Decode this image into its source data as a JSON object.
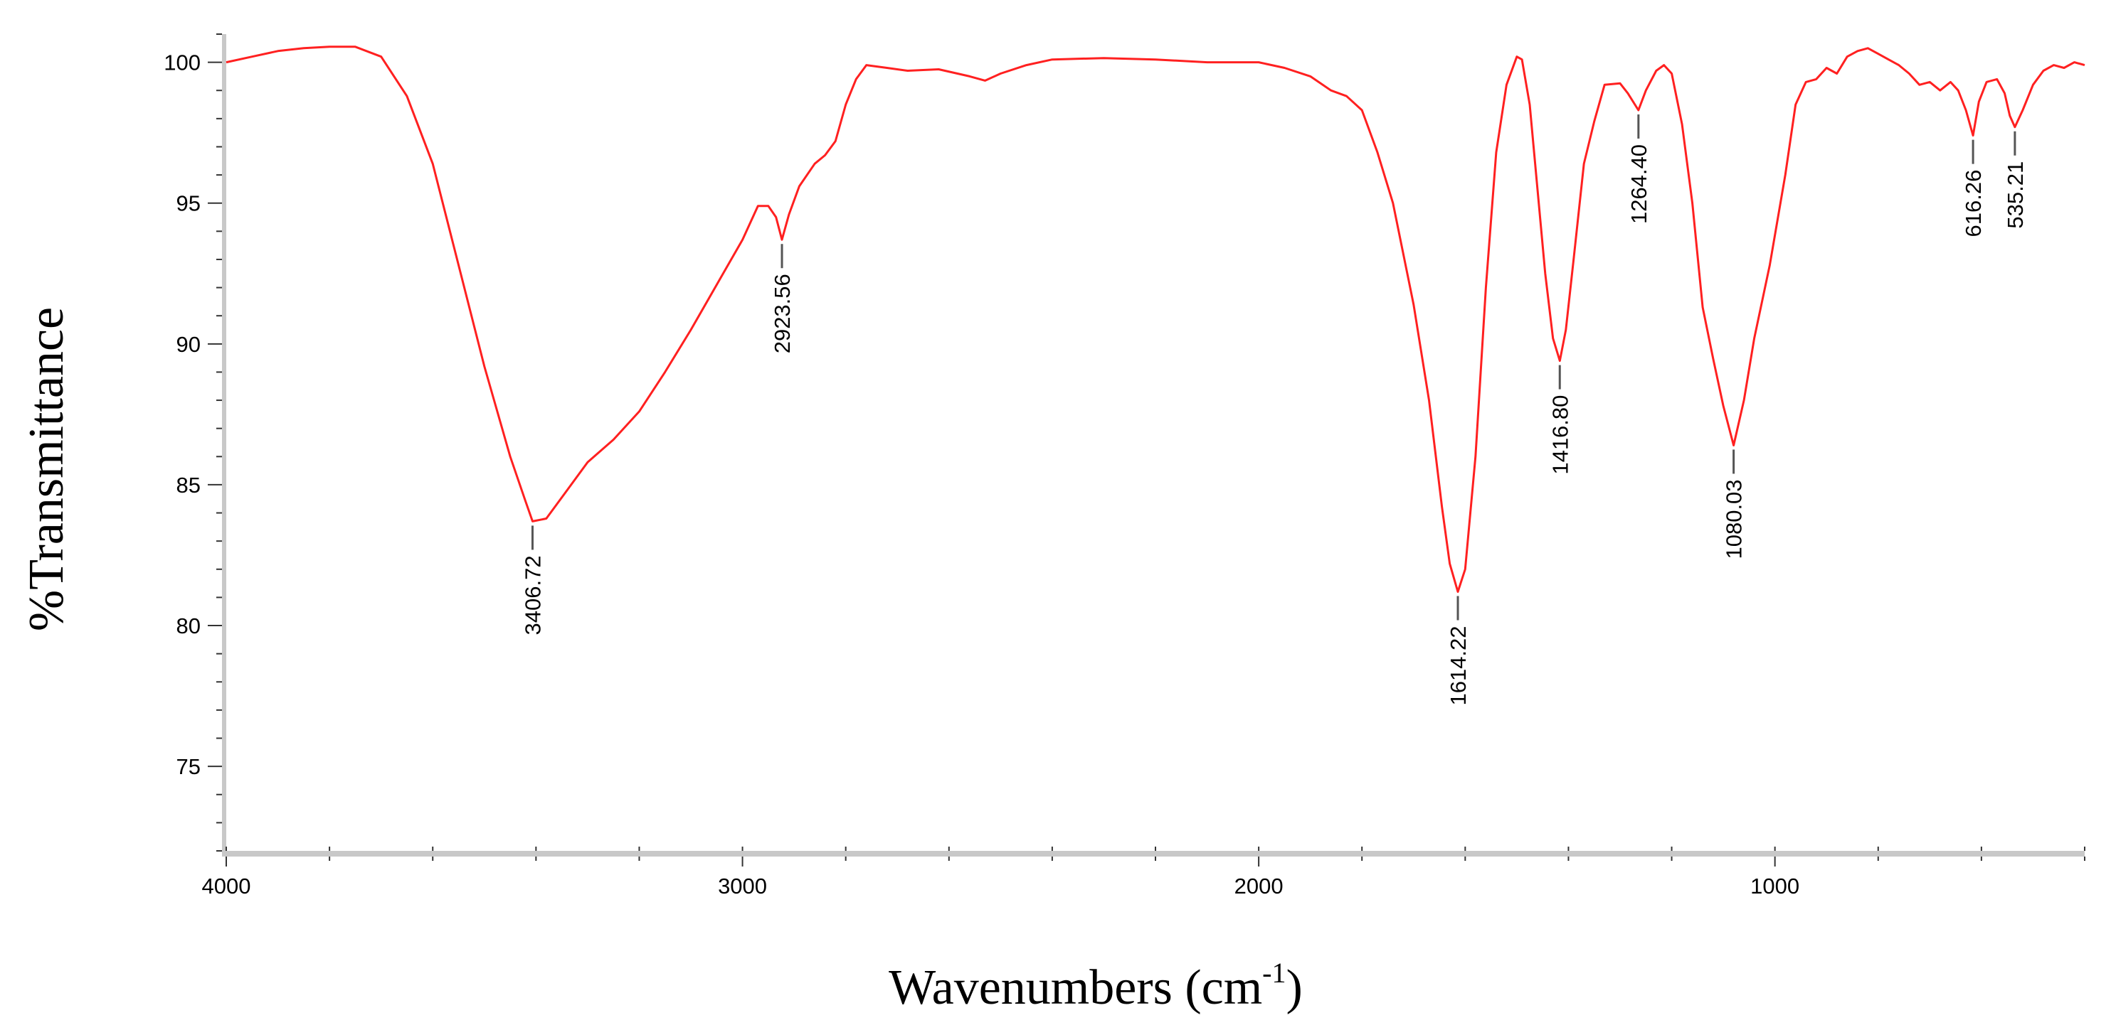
{
  "chart_data": {
    "type": "line",
    "title": "",
    "xlabel": "Wavenumbers (cm",
    "xlabel_sup": "-1",
    "xlabel_close": ")",
    "ylabel": "%Transmittance",
    "xlim": [
      4000,
      400
    ],
    "ylim": [
      72,
      101
    ],
    "x_ticks": [
      4000,
      3000,
      2000,
      1000
    ],
    "y_ticks": [
      100,
      95,
      90,
      85,
      80,
      75
    ],
    "grid": false,
    "line_color": "#ff2020",
    "peak_line_color": "#555555",
    "peak_labels": [
      {
        "label": "3406.72",
        "x": 3406.72,
        "y": 83.7
      },
      {
        "label": "2923.56",
        "x": 2923.56,
        "y": 93.7
      },
      {
        "label": "1614.22",
        "x": 1614.22,
        "y": 81.2
      },
      {
        "label": "1416.80",
        "x": 1416.8,
        "y": 89.4
      },
      {
        "label": "1264.40",
        "x": 1264.4,
        "y": 98.3
      },
      {
        "label": "1080.03",
        "x": 1080.03,
        "y": 86.4
      },
      {
        "label": "616.26",
        "x": 616.26,
        "y": 97.4
      },
      {
        "label": "535.21",
        "x": 535.21,
        "y": 97.7
      }
    ],
    "series": [
      {
        "points": [
          [
            4000,
            100.0
          ],
          [
            3950,
            100.2
          ],
          [
            3900,
            100.4
          ],
          [
            3850,
            100.5
          ],
          [
            3800,
            100.55
          ],
          [
            3750,
            100.55
          ],
          [
            3700,
            100.2
          ],
          [
            3650,
            98.8
          ],
          [
            3600,
            96.4
          ],
          [
            3550,
            92.8
          ],
          [
            3500,
            89.2
          ],
          [
            3450,
            86.0
          ],
          [
            3420,
            84.4
          ],
          [
            3406.72,
            83.7
          ],
          [
            3380,
            83.8
          ],
          [
            3340,
            84.8
          ],
          [
            3300,
            85.8
          ],
          [
            3250,
            86.6
          ],
          [
            3200,
            87.6
          ],
          [
            3150,
            89.0
          ],
          [
            3100,
            90.5
          ],
          [
            3050,
            92.1
          ],
          [
            3000,
            93.7
          ],
          [
            2970,
            94.9
          ],
          [
            2950,
            94.9
          ],
          [
            2935,
            94.5
          ],
          [
            2923.56,
            93.7
          ],
          [
            2910,
            94.6
          ],
          [
            2890,
            95.6
          ],
          [
            2860,
            96.4
          ],
          [
            2840,
            96.7
          ],
          [
            2820,
            97.2
          ],
          [
            2800,
            98.5
          ],
          [
            2780,
            99.4
          ],
          [
            2760,
            99.9
          ],
          [
            2720,
            99.8
          ],
          [
            2680,
            99.7
          ],
          [
            2620,
            99.75
          ],
          [
            2560,
            99.5
          ],
          [
            2530,
            99.35
          ],
          [
            2500,
            99.6
          ],
          [
            2450,
            99.9
          ],
          [
            2400,
            100.1
          ],
          [
            2300,
            100.15
          ],
          [
            2200,
            100.1
          ],
          [
            2100,
            100.0
          ],
          [
            2000,
            100.0
          ],
          [
            1950,
            99.8
          ],
          [
            1900,
            99.5
          ],
          [
            1860,
            99.0
          ],
          [
            1830,
            98.8
          ],
          [
            1800,
            98.3
          ],
          [
            1770,
            96.8
          ],
          [
            1740,
            95.0
          ],
          [
            1700,
            91.4
          ],
          [
            1670,
            88.0
          ],
          [
            1645,
            84.2
          ],
          [
            1630,
            82.2
          ],
          [
            1614.22,
            81.2
          ],
          [
            1600,
            82.0
          ],
          [
            1580,
            86.0
          ],
          [
            1560,
            92.0
          ],
          [
            1540,
            96.8
          ],
          [
            1520,
            99.2
          ],
          [
            1500,
            100.2
          ],
          [
            1490,
            100.1
          ],
          [
            1475,
            98.5
          ],
          [
            1460,
            95.5
          ],
          [
            1445,
            92.5
          ],
          [
            1430,
            90.2
          ],
          [
            1416.8,
            89.4
          ],
          [
            1405,
            90.5
          ],
          [
            1390,
            93.0
          ],
          [
            1370,
            96.4
          ],
          [
            1350,
            97.9
          ],
          [
            1330,
            99.2
          ],
          [
            1300,
            99.25
          ],
          [
            1285,
            98.9
          ],
          [
            1264.4,
            98.3
          ],
          [
            1250,
            99.0
          ],
          [
            1230,
            99.7
          ],
          [
            1215,
            99.9
          ],
          [
            1200,
            99.6
          ],
          [
            1180,
            97.8
          ],
          [
            1160,
            95.0
          ],
          [
            1140,
            91.3
          ],
          [
            1120,
            89.5
          ],
          [
            1100,
            87.8
          ],
          [
            1080.03,
            86.4
          ],
          [
            1060,
            88.0
          ],
          [
            1040,
            90.2
          ],
          [
            1010,
            92.8
          ],
          [
            980,
            96.0
          ],
          [
            960,
            98.5
          ],
          [
            940,
            99.3
          ],
          [
            920,
            99.4
          ],
          [
            900,
            99.8
          ],
          [
            880,
            99.6
          ],
          [
            860,
            100.2
          ],
          [
            840,
            100.4
          ],
          [
            820,
            100.5
          ],
          [
            800,
            100.3
          ],
          [
            780,
            100.1
          ],
          [
            760,
            99.9
          ],
          [
            740,
            99.6
          ],
          [
            720,
            99.2
          ],
          [
            700,
            99.3
          ],
          [
            680,
            99.0
          ],
          [
            660,
            99.3
          ],
          [
            645,
            99.0
          ],
          [
            630,
            98.3
          ],
          [
            616.26,
            97.4
          ],
          [
            605,
            98.6
          ],
          [
            590,
            99.3
          ],
          [
            570,
            99.4
          ],
          [
            555,
            98.9
          ],
          [
            545,
            98.1
          ],
          [
            535.21,
            97.7
          ],
          [
            520,
            98.3
          ],
          [
            500,
            99.2
          ],
          [
            480,
            99.7
          ],
          [
            460,
            99.9
          ],
          [
            440,
            99.8
          ],
          [
            420,
            100.0
          ],
          [
            400,
            99.9
          ]
        ]
      }
    ]
  }
}
